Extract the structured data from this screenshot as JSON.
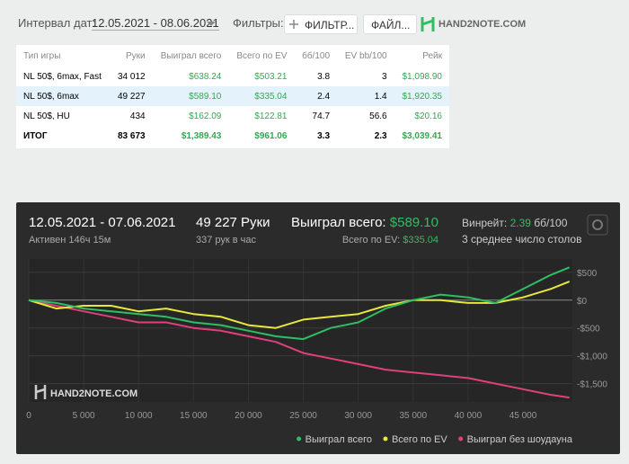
{
  "toolbar": {
    "interval_label": "Интервал дат:",
    "interval": "12.05.2021 - 08.06.2021",
    "filters_label": "Фильтры:",
    "filter_button": "ФИЛЬТР...",
    "file_button": "ФАЙЛ...",
    "logo": "HAND2NOTE.COM"
  },
  "table": {
    "headers": [
      "Тип игры",
      "Руки",
      "Выиграл всего",
      "Всего по EV",
      "бб/100",
      "EV bb/100",
      "Рейк"
    ],
    "rows": [
      [
        "NL 50$, 6max, Fast",
        "34 012",
        "$638.24",
        "$503.21",
        "3.8",
        "3",
        "$1,098.90"
      ],
      [
        "NL 50$, 6max",
        "49 227",
        "$589.10",
        "$335.04",
        "2.4",
        "1.4",
        "$1,920.35"
      ],
      [
        "NL 50$, HU",
        "434",
        "$162.09",
        "$122.81",
        "74.7",
        "56.6",
        "$20.16"
      ]
    ],
    "total": [
      "ИТОГ",
      "83 673",
      "$1,389.43",
      "$961.06",
      "3.3",
      "2.3",
      "$3,039.41"
    ]
  },
  "chart_data": {
    "type": "line",
    "period": "12.05.2021 - 07.06.2021",
    "active": "Активен 146ч 15м",
    "hands": "49 227 Руки",
    "hands_per_hour": "337 рук в час",
    "won_label": "Выиграл всего:",
    "won_value": "$589.10",
    "ev_label": "Всего по EV:",
    "ev_value": "$335.04",
    "winrate_label": "Винрейт:",
    "winrate_value": "2.39",
    "winrate_unit": "бб/100",
    "tables": "3 среднее число столов",
    "watermark": "HAND2NOTE.COM",
    "x": [
      0,
      2500,
      5000,
      7500,
      10000,
      12500,
      15000,
      17500,
      20000,
      22500,
      25000,
      27500,
      30000,
      32500,
      35000,
      37500,
      40000,
      42500,
      45000,
      47500,
      49227
    ],
    "series": [
      {
        "name": "Выиграл всего",
        "color": "#2fbf63",
        "values": [
          0,
          -50,
          -150,
          -200,
          -250,
          -300,
          -400,
          -450,
          -550,
          -650,
          -700,
          -500,
          -400,
          -150,
          0,
          100,
          50,
          -50,
          200,
          450,
          589
        ]
      },
      {
        "name": "Всего по EV",
        "color": "#e8e83a",
        "values": [
          0,
          -150,
          -100,
          -100,
          -200,
          -150,
          -250,
          -300,
          -450,
          -500,
          -350,
          -300,
          -250,
          -100,
          0,
          0,
          -50,
          -50,
          50,
          200,
          335
        ]
      },
      {
        "name": "Выиграл без шоудауна",
        "color": "#e0407a",
        "values": [
          0,
          -100,
          -200,
          -300,
          -400,
          -400,
          -500,
          -550,
          -650,
          -750,
          -950,
          -1050,
          -1150,
          -1250,
          -1300,
          -1350,
          -1400,
          -1500,
          -1600,
          -1700,
          -1750
        ]
      }
    ],
    "xlim": [
      0,
      49500
    ],
    "xticks": [
      0,
      {
        "value": 5000,
        "label": "5 000"
      },
      {
        "value": 10000,
        "label": "10 000"
      },
      {
        "value": 15000,
        "label": "15 000"
      },
      {
        "value": 20000,
        "label": "20 000"
      },
      {
        "value": 25000,
        "label": "25 000"
      },
      {
        "value": 30000,
        "label": "30 000"
      },
      {
        "value": 35000,
        "label": "35 000"
      },
      {
        "value": 40000,
        "label": "40 000"
      },
      {
        "value": 45000,
        "label": "45 000"
      }
    ],
    "ylim": [
      -1830,
      740
    ],
    "yticks": [
      {
        "value": 500,
        "label": "$500"
      },
      {
        "value": 0,
        "label": "$0"
      },
      {
        "value": -500,
        "label": "-$500"
      },
      {
        "value": -1000,
        "label": "-$1,000"
      },
      {
        "value": -1500,
        "label": "-$1,500"
      }
    ],
    "grid": true
  }
}
